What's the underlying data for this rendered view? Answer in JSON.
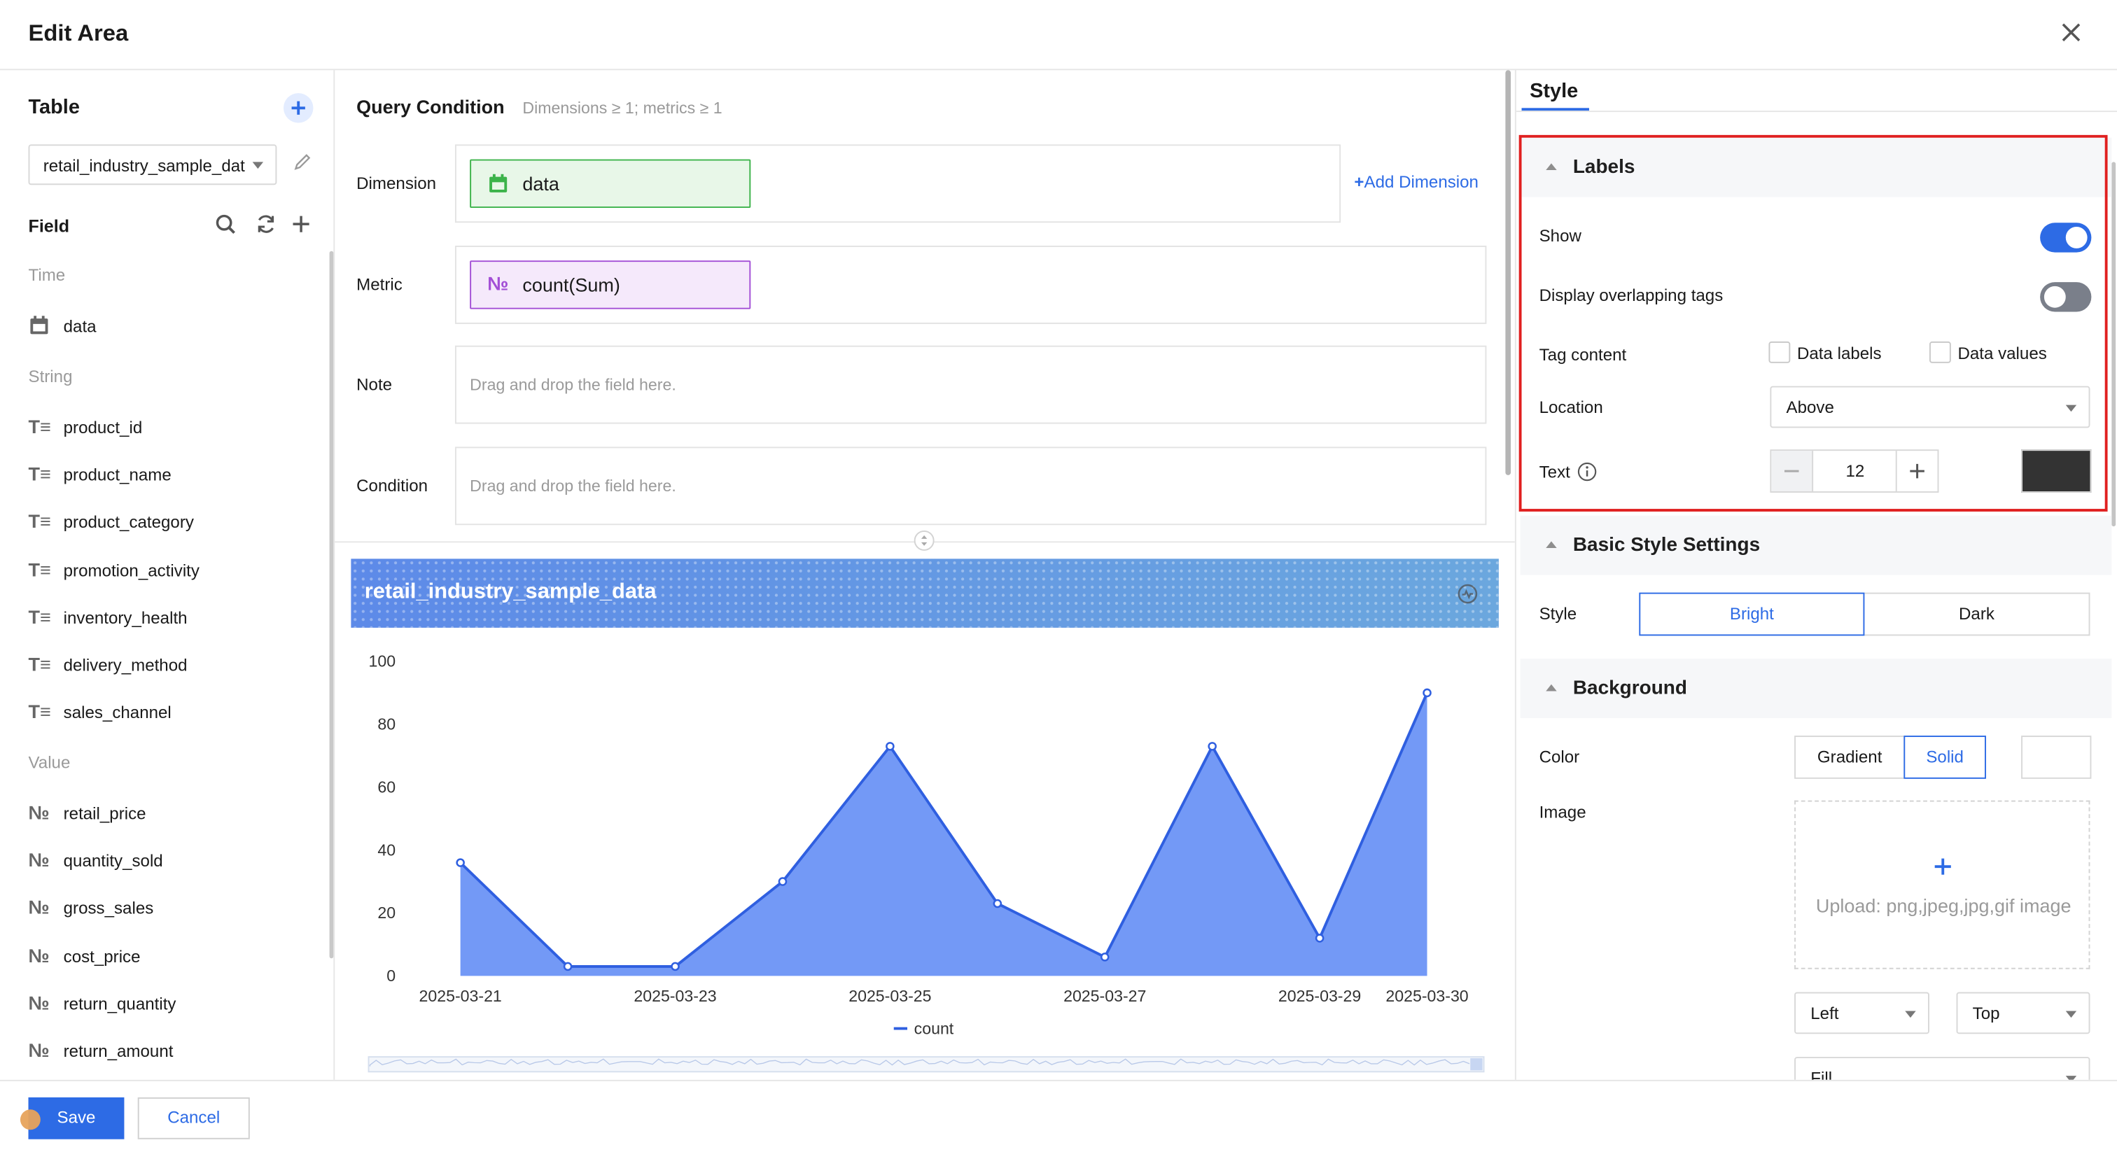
{
  "header": {
    "title": "Edit Area"
  },
  "left": {
    "table_title": "Table",
    "table_select": "retail_industry_sample_data",
    "field_title": "Field",
    "groups": [
      {
        "label": "Time",
        "items": [
          {
            "name": "data",
            "icon": "calendar-icon"
          }
        ]
      },
      {
        "label": "String",
        "items": [
          {
            "name": "product_id",
            "icon": "text-type-icon"
          },
          {
            "name": "product_name",
            "icon": "text-type-icon"
          },
          {
            "name": "product_category",
            "icon": "text-type-icon"
          },
          {
            "name": "promotion_activity",
            "icon": "text-type-icon"
          },
          {
            "name": "inventory_health",
            "icon": "text-type-icon"
          },
          {
            "name": "delivery_method",
            "icon": "text-type-icon"
          },
          {
            "name": "sales_channel",
            "icon": "text-type-icon"
          }
        ]
      },
      {
        "label": "Value",
        "items": [
          {
            "name": "retail_price",
            "icon": "number-type-icon"
          },
          {
            "name": "quantity_sold",
            "icon": "number-type-icon"
          },
          {
            "name": "gross_sales",
            "icon": "number-type-icon"
          },
          {
            "name": "cost_price",
            "icon": "number-type-icon"
          },
          {
            "name": "return_quantity",
            "icon": "number-type-icon"
          },
          {
            "name": "return_amount",
            "icon": "number-type-icon"
          }
        ]
      }
    ]
  },
  "query": {
    "title": "Query Condition",
    "hint": "Dimensions ≥ 1; metrics ≥ 1",
    "dimension_label": "Dimension",
    "dimension_chip": "data",
    "add_dimension": "Add Dimension",
    "metric_label": "Metric",
    "metric_chip": "count(Sum)",
    "note_label": "Note",
    "note_placeholder": "Drag and drop the field here.",
    "condition_label": "Condition",
    "condition_placeholder": "Drag and drop the field here."
  },
  "chart_title": "retail_industry_sample_data",
  "chart_data": {
    "type": "area",
    "title": "retail_industry_sample_data",
    "x": [
      "2025-03-21",
      "2025-03-22",
      "2025-03-23",
      "2025-03-24",
      "2025-03-25",
      "2025-03-26",
      "2025-03-27",
      "2025-03-28",
      "2025-03-29",
      "2025-03-30"
    ],
    "x_tick_labels": [
      "2025-03-21",
      "2025-03-23",
      "2025-03-25",
      "2025-03-27",
      "2025-03-29",
      "2025-03-30"
    ],
    "series": [
      {
        "name": "count",
        "values": [
          36,
          3,
          3,
          30,
          73,
          23,
          6,
          73,
          12,
          90
        ]
      }
    ],
    "ylim": [
      0,
      100
    ],
    "y_ticks": [
      "0",
      "20",
      "40",
      "60",
      "80",
      "100"
    ],
    "grid": false,
    "legend": "bottom",
    "color": "#6b94f5"
  },
  "style_panel": {
    "tab": "Style",
    "labels_section": "Labels",
    "show_label": "Show",
    "show_on": true,
    "overlap_label": "Display overlapping tags",
    "overlap_on": false,
    "tag_content_label": "Tag content",
    "data_labels": "Data labels",
    "data_values": "Data values",
    "location_label": "Location",
    "location_value": "Above",
    "text_label": "Text",
    "text_size": "12",
    "text_color": "#333333",
    "basic_section": "Basic Style Settings",
    "style_label": "Style",
    "style_bright": "Bright",
    "style_dark": "Dark",
    "background_section": "Background",
    "color_label": "Color",
    "gradient": "Gradient",
    "solid": "Solid",
    "image_label": "Image",
    "upload_text": "Upload: png,jpeg,jpg,gif image",
    "align_h": "Left",
    "align_v": "Top",
    "fill": "Fill"
  },
  "footer": {
    "save": "Save",
    "cancel": "Cancel"
  },
  "colors": {
    "accent": "#2d6be5",
    "highlight": "#e02020",
    "dimension_chip": "#3cb34a",
    "metric_chip": "#a34fd6"
  }
}
